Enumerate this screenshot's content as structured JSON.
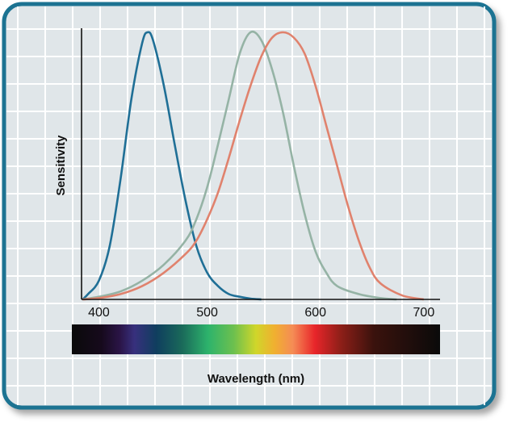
{
  "chart_data": {
    "type": "line",
    "title": "",
    "xlabel": "Wavelength (nm)",
    "ylabel": "Sensitivity",
    "xlim": [
      384,
      715
    ],
    "ylim": [
      0,
      1.02
    ],
    "xticks": [
      400,
      500,
      600,
      700
    ],
    "grid": true,
    "legend": "none",
    "colorbar": "visible spectrum under x axis",
    "series": [
      {
        "color": "#1f6f96",
        "x": [
          385,
          390,
          400,
          410,
          420,
          430,
          440,
          445,
          450,
          460,
          470,
          480,
          490,
          500,
          510,
          520,
          530,
          540,
          550
        ],
        "y": [
          0,
          0.02,
          0.07,
          0.2,
          0.45,
          0.75,
          0.96,
          1.0,
          0.97,
          0.8,
          0.58,
          0.37,
          0.2,
          0.1,
          0.05,
          0.02,
          0.01,
          0.003,
          0
        ]
      },
      {
        "color": "#95b3a5",
        "x": [
          385,
          400,
          420,
          440,
          460,
          480,
          490,
          500,
          510,
          520,
          530,
          540,
          550,
          560,
          570,
          580,
          590,
          600,
          610,
          620,
          640,
          660,
          675
        ],
        "y": [
          0,
          0.01,
          0.03,
          0.07,
          0.13,
          0.22,
          0.3,
          0.42,
          0.58,
          0.75,
          0.92,
          1.0,
          0.97,
          0.86,
          0.7,
          0.5,
          0.32,
          0.18,
          0.1,
          0.05,
          0.02,
          0.005,
          0
        ]
      },
      {
        "color": "#e0826d",
        "x": [
          385,
          400,
          420,
          440,
          460,
          480,
          490,
          500,
          510,
          520,
          530,
          540,
          550,
          560,
          570,
          580,
          590,
          600,
          610,
          620,
          630,
          640,
          650,
          660,
          680,
          700
        ],
        "y": [
          0,
          0.005,
          0.02,
          0.05,
          0.1,
          0.17,
          0.22,
          0.3,
          0.4,
          0.53,
          0.67,
          0.8,
          0.91,
          0.98,
          1.0,
          0.98,
          0.92,
          0.8,
          0.65,
          0.5,
          0.35,
          0.22,
          0.12,
          0.06,
          0.015,
          0
        ]
      }
    ]
  },
  "colors": {
    "frame": "#1e7392",
    "panel": "#e0e6e9",
    "grid": "#ffffff"
  }
}
